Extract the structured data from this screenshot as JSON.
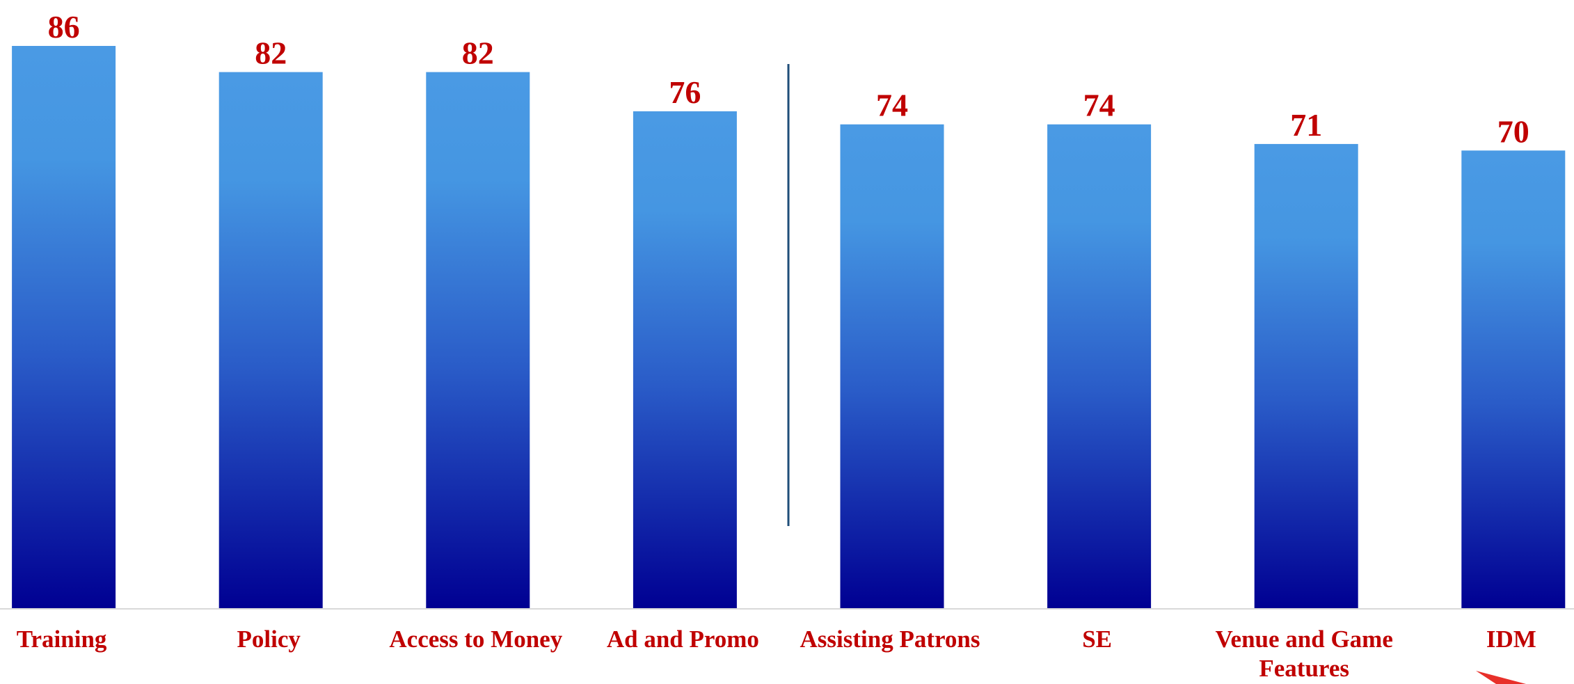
{
  "chart_data": {
    "type": "bar",
    "categories": [
      "Training",
      "Policy",
      "Access to Money",
      "Ad and Promo",
      "Assisting Patrons",
      "SE",
      "Venue and Game Features",
      "IDM"
    ],
    "values": [
      86,
      82,
      82,
      76,
      74,
      74,
      71,
      70
    ],
    "color": "#4a9ae4"
  }
}
